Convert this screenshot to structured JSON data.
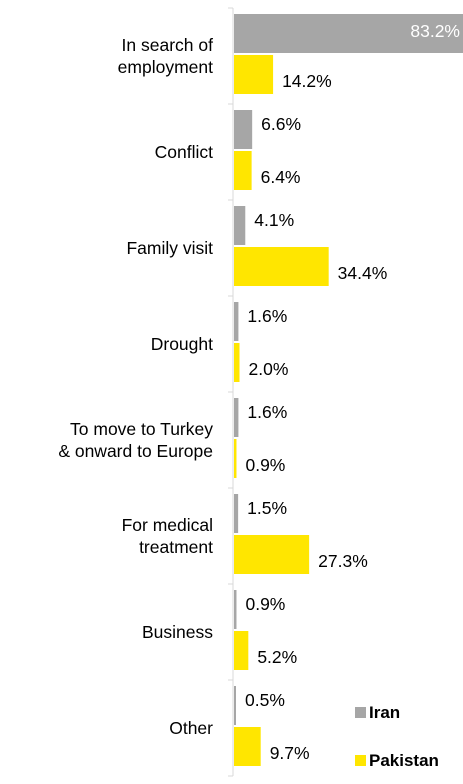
{
  "chart_data": {
    "type": "bar",
    "orientation": "horizontal",
    "categories": [
      [
        "In search of",
        "employment"
      ],
      [
        "Conflict"
      ],
      [
        "Family visit"
      ],
      [
        "Drought"
      ],
      [
        "To move to Turkey",
        "& onward to Europe"
      ],
      [
        "For medical",
        "treatment"
      ],
      [
        "Business"
      ],
      [
        "Other"
      ]
    ],
    "series": [
      {
        "name": "Iran",
        "color": "#a6a6a6",
        "values": [
          83.2,
          6.6,
          4.1,
          1.6,
          1.6,
          1.5,
          0.9,
          0.5
        ],
        "labels": [
          "83.2%",
          "6.6%",
          "4.1%",
          "1.6%",
          "1.6%",
          "1.5%",
          "0.9%",
          "0.5%"
        ]
      },
      {
        "name": "Pakistan",
        "color": "#ffe600",
        "values": [
          14.2,
          6.4,
          34.4,
          2.0,
          0.9,
          27.3,
          5.2,
          9.7
        ],
        "labels": [
          "14.2%",
          "6.4%",
          "34.4%",
          "2.0%",
          "0.9%",
          "27.3%",
          "5.2%",
          "9.7%"
        ]
      }
    ],
    "xlim": [
      0,
      83.2
    ],
    "value_suffix": "%",
    "legend_position": "bottom-right",
    "grid": false
  }
}
